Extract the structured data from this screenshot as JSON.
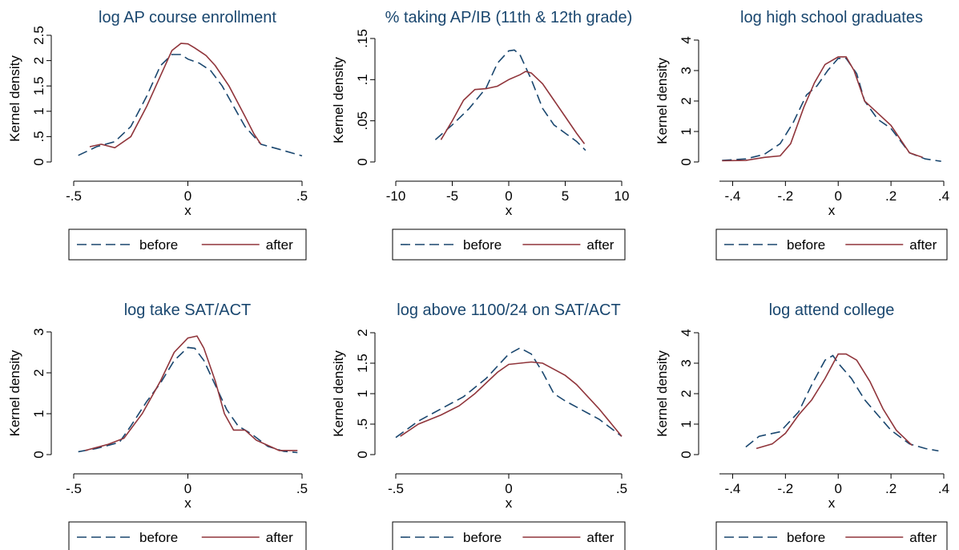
{
  "chart_data": [
    {
      "type": "line",
      "title": "log AP course enrollment",
      "xlabel": "x",
      "ylabel": "Kernel density",
      "xlim": [
        -0.5,
        0.5
      ],
      "ylim": [
        0,
        2.5
      ],
      "xticks": [
        -0.5,
        0,
        0.5
      ],
      "xtick_labels": [
        "-.5",
        "0",
        ".5"
      ],
      "yticks": [
        0,
        0.5,
        1,
        1.5,
        2,
        2.5
      ],
      "ytick_labels": [
        "0",
        ".5",
        "1",
        "1.5",
        "2",
        "2.5"
      ],
      "legend": [
        "before",
        "after"
      ],
      "series": [
        {
          "name": "before",
          "color": "#1a476f",
          "dash": "dashed",
          "x": [
            -0.48,
            -0.4,
            -0.32,
            -0.25,
            -0.18,
            -0.12,
            -0.07,
            -0.03,
            0.0,
            0.05,
            0.1,
            0.15,
            0.2,
            0.25,
            0.32,
            0.4,
            0.5
          ],
          "y": [
            0.13,
            0.3,
            0.4,
            0.7,
            1.3,
            1.9,
            2.12,
            2.12,
            2.03,
            1.95,
            1.8,
            1.5,
            1.1,
            0.7,
            0.35,
            0.25,
            0.12
          ]
        },
        {
          "name": "after",
          "color": "#90353b",
          "dash": "solid",
          "x": [
            -0.43,
            -0.38,
            -0.32,
            -0.25,
            -0.18,
            -0.12,
            -0.07,
            -0.03,
            0.0,
            0.03,
            0.08,
            0.12,
            0.18,
            0.25,
            0.29,
            0.32
          ],
          "y": [
            0.3,
            0.35,
            0.28,
            0.5,
            1.1,
            1.7,
            2.2,
            2.34,
            2.33,
            2.25,
            2.1,
            1.9,
            1.5,
            0.9,
            0.55,
            0.35
          ]
        }
      ]
    },
    {
      "type": "line",
      "title": "% taking AP/IB (11th & 12th grade)",
      "xlabel": "x",
      "ylabel": "Kernel density",
      "xlim": [
        -10,
        10
      ],
      "ylim": [
        0,
        0.15
      ],
      "xticks": [
        -10,
        -5,
        0,
        5,
        10
      ],
      "xtick_labels": [
        "-10",
        "-5",
        "0",
        "5",
        "10"
      ],
      "yticks": [
        0,
        0.05,
        0.1,
        0.15
      ],
      "ytick_labels": [
        "0",
        ".05",
        ".1",
        ".15"
      ],
      "legend": [
        "before",
        "after"
      ],
      "series": [
        {
          "name": "before",
          "color": "#1a476f",
          "dash": "dashed",
          "x": [
            -6.5,
            -5,
            -3.5,
            -2,
            -1,
            0,
            0.5,
            1,
            2,
            3,
            4,
            5,
            6,
            6.8
          ],
          "y": [
            0.027,
            0.045,
            0.065,
            0.09,
            0.12,
            0.135,
            0.136,
            0.13,
            0.1,
            0.065,
            0.045,
            0.035,
            0.025,
            0.014
          ]
        },
        {
          "name": "after",
          "color": "#90353b",
          "dash": "solid",
          "x": [
            -6,
            -5,
            -4,
            -3,
            -2,
            -1,
            0,
            1,
            1.5,
            2,
            3,
            4,
            5,
            6,
            6.7
          ],
          "y": [
            0.027,
            0.05,
            0.075,
            0.088,
            0.089,
            0.092,
            0.1,
            0.106,
            0.11,
            0.108,
            0.095,
            0.075,
            0.055,
            0.035,
            0.022
          ]
        }
      ]
    },
    {
      "type": "line",
      "title": "log high school graduates",
      "xlabel": "x",
      "ylabel": "Kernel density",
      "xlim": [
        -0.45,
        0.4
      ],
      "ylim": [
        0,
        4
      ],
      "xticks": [
        -0.4,
        -0.2,
        0,
        0.2,
        0.4
      ],
      "xtick_labels": [
        "-.4",
        "-.2",
        "0",
        ".2",
        ".4"
      ],
      "yticks": [
        0,
        1,
        2,
        3,
        4
      ],
      "ytick_labels": [
        "0",
        "1",
        "2",
        "3",
        "4"
      ],
      "legend": [
        "before",
        "after"
      ],
      "series": [
        {
          "name": "before",
          "color": "#1a476f",
          "dash": "dashed",
          "x": [
            -0.44,
            -0.35,
            -0.28,
            -0.22,
            -0.17,
            -0.12,
            -0.08,
            -0.04,
            0.0,
            0.03,
            0.07,
            0.1,
            0.15,
            0.2,
            0.27,
            0.33,
            0.39
          ],
          "y": [
            0.05,
            0.1,
            0.25,
            0.6,
            1.3,
            2.2,
            2.5,
            3.0,
            3.4,
            3.4,
            2.9,
            2.0,
            1.4,
            1.1,
            0.3,
            0.1,
            0.02
          ]
        },
        {
          "name": "after",
          "color": "#90353b",
          "dash": "solid",
          "x": [
            -0.44,
            -0.35,
            -0.28,
            -0.22,
            -0.18,
            -0.13,
            -0.09,
            -0.05,
            0.0,
            0.03,
            0.06,
            0.1,
            0.15,
            0.2,
            0.27,
            0.32
          ],
          "y": [
            0.04,
            0.05,
            0.15,
            0.2,
            0.6,
            1.8,
            2.6,
            3.2,
            3.45,
            3.45,
            3.0,
            2.0,
            1.6,
            1.2,
            0.3,
            0.15
          ]
        }
      ]
    },
    {
      "type": "line",
      "title": "log take SAT/ACT",
      "xlabel": "x",
      "ylabel": "Kernel density",
      "xlim": [
        -0.5,
        0.5
      ],
      "ylim": [
        0,
        3
      ],
      "xticks": [
        -0.5,
        0,
        0.5
      ],
      "xtick_labels": [
        "-.5",
        "0",
        ".5"
      ],
      "yticks": [
        0,
        1,
        2,
        3
      ],
      "ytick_labels": [
        "0",
        "1",
        "2",
        "3"
      ],
      "legend": [
        "before",
        "after"
      ],
      "series": [
        {
          "name": "before",
          "color": "#1a476f",
          "dash": "dashed",
          "x": [
            -0.48,
            -0.4,
            -0.3,
            -0.25,
            -0.18,
            -0.12,
            -0.06,
            0.0,
            0.03,
            0.07,
            0.12,
            0.17,
            0.22,
            0.28,
            0.35,
            0.42,
            0.48
          ],
          "y": [
            0.07,
            0.15,
            0.3,
            0.7,
            1.3,
            1.75,
            2.3,
            2.62,
            2.6,
            2.3,
            1.7,
            1.1,
            0.7,
            0.5,
            0.2,
            0.08,
            0.05
          ]
        },
        {
          "name": "after",
          "color": "#90353b",
          "dash": "solid",
          "x": [
            -0.45,
            -0.35,
            -0.28,
            -0.2,
            -0.12,
            -0.06,
            0.0,
            0.04,
            0.07,
            0.12,
            0.16,
            0.2,
            0.25,
            0.3,
            0.4,
            0.48
          ],
          "y": [
            0.1,
            0.25,
            0.4,
            1.0,
            1.8,
            2.5,
            2.85,
            2.9,
            2.6,
            1.8,
            1.0,
            0.6,
            0.6,
            0.35,
            0.1,
            0.1
          ]
        }
      ]
    },
    {
      "type": "line",
      "title": "log above 1100/24 on SAT/ACT",
      "xlabel": "x",
      "ylabel": "Kernel density",
      "xlim": [
        -0.5,
        0.5
      ],
      "ylim": [
        0,
        2
      ],
      "xticks": [
        -0.5,
        0,
        0.5
      ],
      "xtick_labels": [
        "-.5",
        "0",
        ".5"
      ],
      "yticks": [
        0,
        0.5,
        1,
        1.5,
        2
      ],
      "ytick_labels": [
        "0",
        ".5",
        "1",
        "1.5",
        "2"
      ],
      "legend": [
        "before",
        "after"
      ],
      "series": [
        {
          "name": "before",
          "color": "#1a476f",
          "dash": "dashed",
          "x": [
            -0.5,
            -0.4,
            -0.3,
            -0.2,
            -0.1,
            0.0,
            0.05,
            0.1,
            0.15,
            0.2,
            0.25,
            0.3,
            0.4,
            0.5
          ],
          "y": [
            0.28,
            0.55,
            0.75,
            0.95,
            1.25,
            1.65,
            1.75,
            1.65,
            1.35,
            1.0,
            0.88,
            0.78,
            0.58,
            0.3
          ]
        },
        {
          "name": "after",
          "color": "#90353b",
          "dash": "solid",
          "x": [
            -0.48,
            -0.4,
            -0.3,
            -0.22,
            -0.15,
            -0.05,
            0.0,
            0.05,
            0.1,
            0.15,
            0.2,
            0.25,
            0.3,
            0.4,
            0.5
          ],
          "y": [
            0.3,
            0.5,
            0.65,
            0.8,
            1.0,
            1.35,
            1.48,
            1.5,
            1.52,
            1.5,
            1.4,
            1.3,
            1.15,
            0.75,
            0.3
          ]
        }
      ]
    },
    {
      "type": "line",
      "title": "log attend college",
      "xlabel": "x",
      "ylabel": "Kernel density",
      "xlim": [
        -0.45,
        0.4
      ],
      "ylim": [
        0,
        4
      ],
      "xticks": [
        -0.4,
        -0.2,
        0,
        0.2,
        0.4
      ],
      "xtick_labels": [
        "-.4",
        "-.2",
        "0",
        ".2",
        ".4"
      ],
      "yticks": [
        0,
        1,
        2,
        3,
        4
      ],
      "ytick_labels": [
        "0",
        "1",
        "2",
        "3",
        "4"
      ],
      "legend": [
        "before",
        "after"
      ],
      "series": [
        {
          "name": "before",
          "color": "#1a476f",
          "dash": "dashed",
          "x": [
            -0.35,
            -0.3,
            -0.22,
            -0.15,
            -0.1,
            -0.05,
            -0.02,
            0.0,
            0.05,
            0.1,
            0.15,
            0.2,
            0.27,
            0.33,
            0.38
          ],
          "y": [
            0.25,
            0.6,
            0.75,
            1.4,
            2.3,
            3.1,
            3.25,
            3.0,
            2.5,
            1.8,
            1.3,
            0.8,
            0.35,
            0.2,
            0.12
          ]
        },
        {
          "name": "after",
          "color": "#90353b",
          "dash": "solid",
          "x": [
            -0.31,
            -0.25,
            -0.2,
            -0.15,
            -0.1,
            -0.05,
            0.0,
            0.03,
            0.07,
            0.12,
            0.17,
            0.22,
            0.28
          ],
          "y": [
            0.2,
            0.35,
            0.7,
            1.3,
            1.8,
            2.5,
            3.3,
            3.3,
            3.1,
            2.4,
            1.5,
            0.8,
            0.3
          ]
        }
      ]
    }
  ]
}
